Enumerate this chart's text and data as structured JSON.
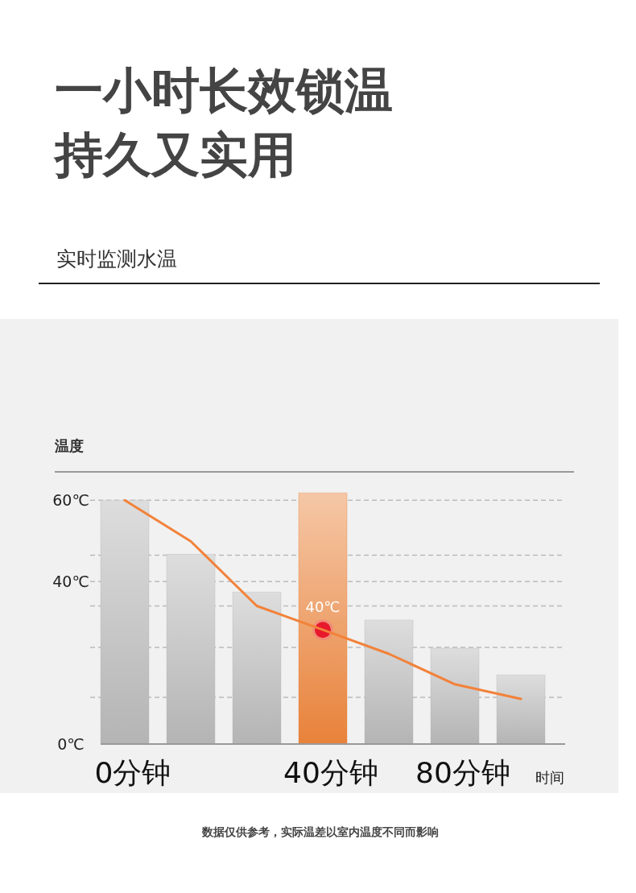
{
  "chart_data": {
    "type": "bar",
    "title": "一小时长效锁温持久又实用",
    "subtitle": "实时监测水温",
    "ylabel": "温度",
    "xlabel": "时间",
    "categories": [
      "0分钟",
      null,
      null,
      "40分钟",
      null,
      "80分钟",
      null
    ],
    "ylim": [
      0,
      67
    ],
    "yticks": [
      {
        "value": 0,
        "label": "0℃"
      },
      {
        "value": 11.5,
        "label": null
      },
      {
        "value": 23.8,
        "label": null
      },
      {
        "value": 34,
        "label": null
      },
      {
        "value": 40,
        "label": "40℃"
      },
      {
        "value": 46.5,
        "label": null
      },
      {
        "value": 60,
        "label": "60℃"
      }
    ],
    "grid": "y",
    "series": [
      {
        "colors": [
          "#b4b4b4",
          "#b4b4b4",
          "#b4b4b4",
          "#e8823a",
          "#b4b4b4",
          "#b4b4b4",
          "#b4b4b4"
        ],
        "values": [
          60,
          46.7,
          37.4,
          61.8,
          30.5,
          23.6,
          17
        ]
      },
      {
        "type": "line",
        "color": "#f2823a",
        "values": [
          60,
          49.9,
          34,
          28.1,
          22.2,
          14.7,
          11.1
        ]
      }
    ],
    "annotations": [
      "40℃",
      "数据仅供参考，实际温差以室内温度不同而影响"
    ]
  }
}
